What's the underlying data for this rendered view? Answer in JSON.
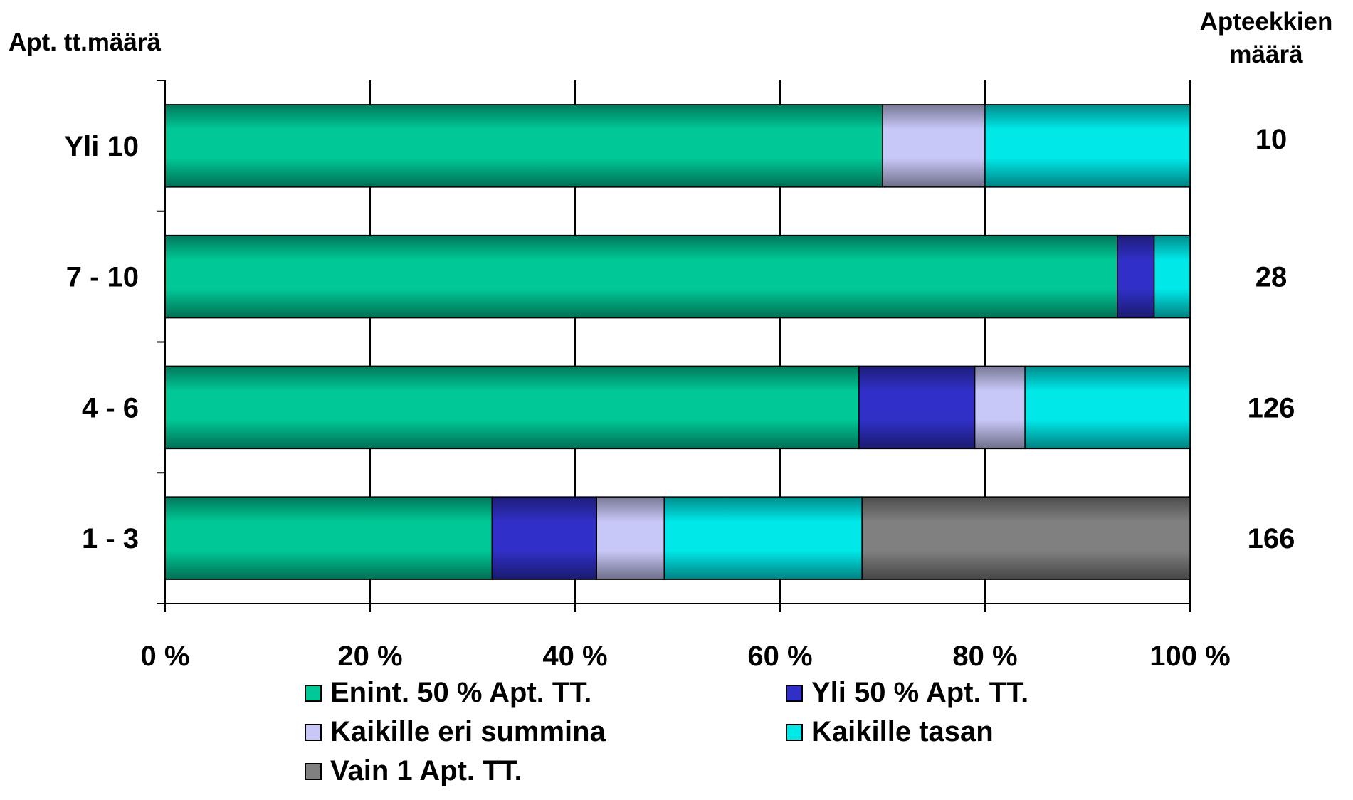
{
  "chart_data": {
    "type": "bar",
    "orientation": "horizontal",
    "stacked": "percent",
    "ylabel": "Apt. tt.määrä",
    "right_axis_title": [
      "Apteekkien",
      "määrä"
    ],
    "categories": [
      "Yli 10",
      "7 - 10",
      "4 - 6",
      "1 - 3"
    ],
    "counts": [
      "10",
      "28",
      "126",
      "166"
    ],
    "xlim": [
      0,
      100
    ],
    "xticks": [
      "0 %",
      "20 %",
      "40 %",
      "60 %",
      "80 %",
      "100 %"
    ],
    "grid": true,
    "legend_position": "bottom",
    "series": [
      {
        "name": "Enint. 50 % Apt. TT.",
        "color": "#00c896",
        "values": [
          70,
          92.9,
          67.7,
          31.9
        ]
      },
      {
        "name": "Yli 50 % Apt. TT.",
        "color": "#3030c8",
        "values": [
          0,
          3.6,
          11.3,
          10.2
        ]
      },
      {
        "name": "Kaikille eri summina",
        "color": "#c8c8f8",
        "values": [
          10,
          0,
          4.9,
          6.6
        ]
      },
      {
        "name": "Kaikille tasan",
        "color": "#00e8e8",
        "values": [
          20,
          3.5,
          16.1,
          19.3
        ]
      },
      {
        "name": "Vain 1 Apt. TT.",
        "color": "#808080",
        "values": [
          0,
          0,
          0,
          32
        ]
      }
    ]
  }
}
